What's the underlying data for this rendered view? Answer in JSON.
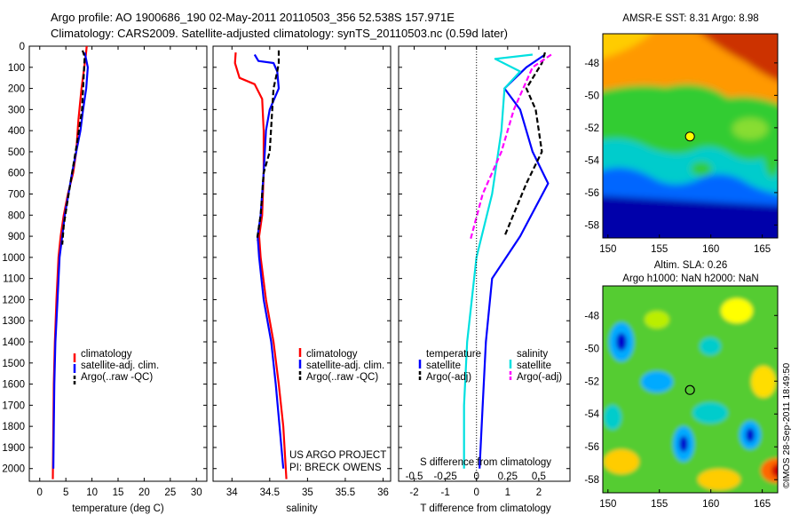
{
  "header": {
    "title_line1": "Argo profile: AO 1900686_190 02-May-2011 20110503_356 52.538S 157.971E",
    "title_line2": "Climatology: CARS2009. Satellite-adjusted climatology: synTS_20110503.nc (0.59d later)"
  },
  "credits": {
    "project": "US ARGO PROJECT",
    "pi": "PI: BRECK OWENS",
    "stamp": "©IMOS 28-Sep-2011 18:49:50"
  },
  "chart_data": [
    {
      "type": "line",
      "id": "temperature",
      "xlabel": "temperature (deg C)",
      "ylabel": "",
      "xlim": [
        -2,
        32
      ],
      "ylim": [
        2060,
        0
      ],
      "xticks": [
        0,
        5,
        10,
        15,
        20,
        25,
        30
      ],
      "yticks": [
        0,
        100,
        200,
        300,
        400,
        500,
        600,
        700,
        800,
        900,
        1000,
        1100,
        1200,
        1300,
        1400,
        1500,
        1600,
        1700,
        1800,
        1900,
        2000
      ],
      "legend": [
        "climatology",
        "satellite-adj. clim.",
        "Argo(..raw -QC)"
      ],
      "series": [
        {
          "name": "climatology",
          "color": "#ff0000",
          "style": "solid",
          "points": [
            [
              9.0,
              0
            ],
            [
              8.8,
              50
            ],
            [
              8.0,
              200
            ],
            [
              7.4,
              350
            ],
            [
              7.0,
              500
            ],
            [
              6.4,
              600
            ],
            [
              5.4,
              700
            ],
            [
              4.6,
              800
            ],
            [
              4.0,
              900
            ],
            [
              3.6,
              1000
            ],
            [
              3.2,
              1200
            ],
            [
              2.9,
              1400
            ],
            [
              2.7,
              1600
            ],
            [
              2.6,
              1800
            ],
            [
              2.5,
              2050
            ]
          ]
        },
        {
          "name": "satellite-adj. clim.",
          "color": "#0000ff",
          "style": "solid",
          "points": [
            [
              8.6,
              30
            ],
            [
              9.2,
              100
            ],
            [
              8.9,
              200
            ],
            [
              8.3,
              300
            ],
            [
              7.8,
              400
            ],
            [
              7.0,
              500
            ],
            [
              6.2,
              600
            ],
            [
              5.5,
              700
            ],
            [
              4.8,
              800
            ],
            [
              4.3,
              900
            ],
            [
              3.8,
              1000
            ],
            [
              3.4,
              1200
            ],
            [
              3.0,
              1400
            ],
            [
              2.8,
              1600
            ],
            [
              2.7,
              1800
            ],
            [
              2.6,
              2000
            ]
          ]
        },
        {
          "name": "Argo(..raw -QC)",
          "color": "#000000",
          "style": "dash",
          "points": [
            [
              8.2,
              20
            ],
            [
              8.6,
              50
            ],
            [
              8.4,
              150
            ],
            [
              8.1,
              300
            ],
            [
              7.2,
              450
            ],
            [
              6.2,
              600
            ],
            [
              5.2,
              750
            ],
            [
              4.6,
              850
            ],
            [
              4.3,
              940
            ]
          ]
        }
      ]
    },
    {
      "type": "line",
      "id": "salinity",
      "xlabel": "salinity",
      "ylabel": "",
      "xlim": [
        33.75,
        36.1
      ],
      "ylim": [
        2060,
        0
      ],
      "xticks": [
        34,
        34.5,
        35,
        35.5,
        36
      ],
      "legend": [
        "climatology",
        "satellite-adj. clim.",
        "Argo(..raw -QC)"
      ],
      "series": [
        {
          "name": "climatology",
          "color": "#ff0000",
          "style": "solid",
          "points": [
            [
              34.05,
              30
            ],
            [
              34.04,
              80
            ],
            [
              34.1,
              150
            ],
            [
              34.3,
              180
            ],
            [
              34.4,
              250
            ],
            [
              34.42,
              400
            ],
            [
              34.42,
              600
            ],
            [
              34.4,
              800
            ],
            [
              34.36,
              900
            ],
            [
              34.38,
              1000
            ],
            [
              34.45,
              1200
            ],
            [
              34.55,
              1400
            ],
            [
              34.62,
              1600
            ],
            [
              34.68,
              1800
            ],
            [
              34.72,
              2050
            ]
          ]
        },
        {
          "name": "satellite-adj. clim.",
          "color": "#0000ff",
          "style": "solid",
          "points": [
            [
              34.3,
              40
            ],
            [
              34.35,
              70
            ],
            [
              34.55,
              80
            ],
            [
              34.6,
              120
            ],
            [
              34.62,
              200
            ],
            [
              34.5,
              300
            ],
            [
              34.45,
              400
            ],
            [
              34.42,
              600
            ],
            [
              34.38,
              800
            ],
            [
              34.34,
              900
            ],
            [
              34.36,
              1000
            ],
            [
              34.42,
              1200
            ],
            [
              34.52,
              1400
            ],
            [
              34.58,
              1600
            ],
            [
              34.63,
              1800
            ],
            [
              34.68,
              2000
            ]
          ]
        },
        {
          "name": "Argo(..raw -QC)",
          "color": "#000000",
          "style": "dash",
          "points": [
            [
              34.62,
              20
            ],
            [
              34.62,
              80
            ],
            [
              34.6,
              120
            ],
            [
              34.55,
              200
            ],
            [
              34.5,
              500
            ],
            [
              34.42,
              600
            ],
            [
              34.38,
              800
            ],
            [
              34.33,
              920
            ]
          ]
        }
      ]
    },
    {
      "type": "line",
      "id": "difference",
      "xlabel": "T difference from climatology",
      "xlabel2": "S difference from climatology",
      "ylabel": "",
      "xlim": [
        -2.5,
        3.0
      ],
      "ylim": [
        2060,
        0
      ],
      "xticks": [
        -2,
        -1,
        0,
        1,
        2
      ],
      "xticks2": [
        "-0.5",
        "-0.25",
        "0",
        "0.25",
        "0.5"
      ],
      "legend_temperature_title": "temperature",
      "legend_temperature": [
        "satellite",
        "Argo(-adj)"
      ],
      "legend_salinity_title": "salinity",
      "legend_salinity": [
        "satellite",
        "Argo(-adj)"
      ],
      "series": [
        {
          "name": "T satellite",
          "color": "#0000ff",
          "style": "solid",
          "points": [
            [
              2.2,
              40
            ],
            [
              1.6,
              100
            ],
            [
              0.9,
              200
            ],
            [
              1.4,
              300
            ],
            [
              1.8,
              500
            ],
            [
              2.3,
              650
            ],
            [
              1.4,
              900
            ],
            [
              0.5,
              1100
            ],
            [
              0.3,
              1400
            ],
            [
              0.2,
              1700
            ],
            [
              0.1,
              2000
            ]
          ]
        },
        {
          "name": "T Argo(-adj)",
          "color": "#000000",
          "style": "dash",
          "points": [
            [
              2.2,
              30
            ],
            [
              2.1,
              80
            ],
            [
              1.6,
              200
            ],
            [
              1.9,
              300
            ],
            [
              2.1,
              500
            ],
            [
              1.6,
              650
            ],
            [
              0.9,
              900
            ]
          ]
        },
        {
          "name": "S satellite",
          "color": "#00e0e0",
          "style": "solid",
          "points": [
            [
              1.8,
              40
            ],
            [
              0.6,
              60
            ],
            [
              1.4,
              120
            ],
            [
              0.9,
              200
            ],
            [
              0.8,
              400
            ],
            [
              0.5,
              700
            ],
            [
              0.0,
              1000
            ],
            [
              -0.3,
              1400
            ],
            [
              -0.4,
              1700
            ],
            [
              -0.4,
              2000
            ]
          ]
        },
        {
          "name": "S Argo(-adj)",
          "color": "#ff00ff",
          "style": "dash",
          "points": [
            [
              2.4,
              40
            ],
            [
              1.8,
              100
            ],
            [
              1.2,
              300
            ],
            [
              0.8,
              500
            ],
            [
              0.2,
              700
            ],
            [
              -0.2,
              920
            ]
          ]
        }
      ]
    },
    {
      "type": "heatmap",
      "id": "sst-map",
      "title": "AMSR-E SST: 8.31  Argo: 8.98",
      "xlim": [
        149.5,
        166.5
      ],
      "ylim": [
        -58.8,
        -46.2
      ],
      "xticks": [
        150,
        155,
        160,
        165
      ],
      "yticks": [
        -48,
        -50,
        -52,
        -54,
        -56,
        -58
      ],
      "argo_location": [
        157.971,
        -52.538
      ]
    },
    {
      "type": "heatmap",
      "id": "sla-map",
      "title": "Altim. SLA: 0.26",
      "subtitle": "Argo h1000: NaN h2000: NaN",
      "xlim": [
        149.5,
        166.5
      ],
      "ylim": [
        -58.8,
        -46.2
      ],
      "xticks": [
        150,
        155,
        160,
        165
      ],
      "yticks": [
        -48,
        -50,
        -52,
        -54,
        -56,
        -58
      ],
      "argo_location": [
        157.971,
        -52.538
      ]
    }
  ]
}
